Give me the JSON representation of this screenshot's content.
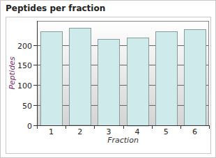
{
  "chart_data": {
    "type": "bar",
    "title": "Peptides per fraction",
    "x_label": "Fraction",
    "y_label": "Peptides",
    "categories": [
      "1",
      "2",
      "3",
      "4",
      "5",
      "6"
    ],
    "values": [
      234,
      242,
      215,
      219,
      234,
      239
    ],
    "color": "#cfeaea",
    "ylim": [
      0,
      260
    ],
    "yticks": [
      0,
      50,
      100,
      150,
      200
    ],
    "grid": true
  }
}
